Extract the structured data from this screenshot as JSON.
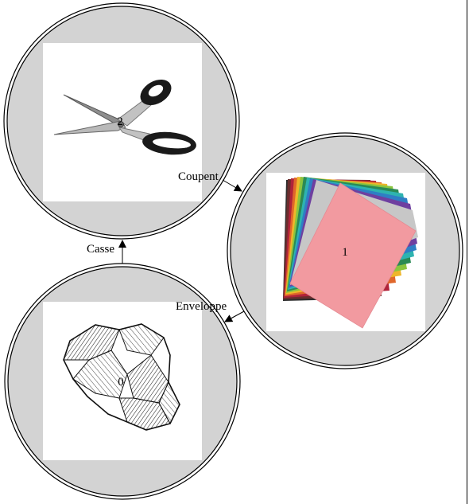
{
  "nodes": [
    {
      "id": "2",
      "number": "2",
      "illustration": "scissors"
    },
    {
      "id": "1",
      "number": "1",
      "illustration": "paper-stack"
    },
    {
      "id": "0",
      "number": "0",
      "illustration": "rock"
    }
  ],
  "edges": [
    {
      "from": "2",
      "to": "1",
      "label": "Coupent"
    },
    {
      "from": "1",
      "to": "0",
      "label": "Enveloppe"
    },
    {
      "from": "0",
      "to": "2",
      "label": "Casse"
    }
  ],
  "colors": {
    "node_fill": "#d3d3d3",
    "node_stroke": "#000000",
    "image_bg": "#ffffff",
    "arrow": "#000000"
  }
}
